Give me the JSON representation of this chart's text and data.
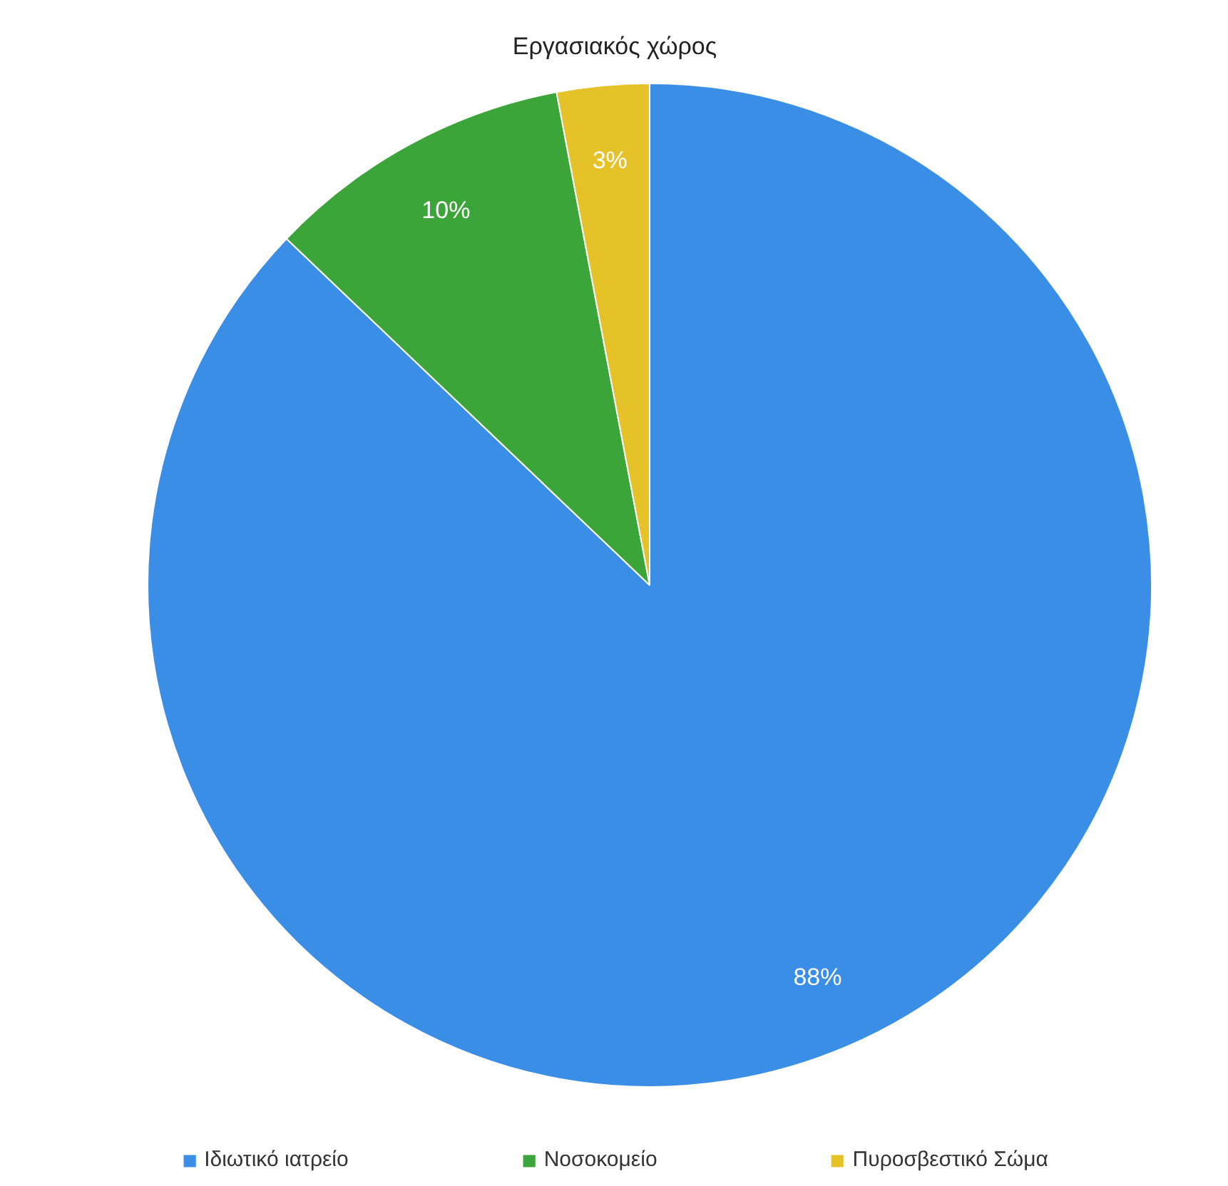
{
  "chart_data": {
    "type": "pie",
    "title": "Εργασιακός χώρος",
    "categories": [
      "Ιδιωτικό ιατρείο",
      "Νοσοκομείο",
      "Πυροσβεστικό Σώμα"
    ],
    "values": [
      88,
      10,
      3
    ],
    "value_labels": [
      "88%",
      "10%",
      "3%"
    ],
    "colors": [
      "#3a8ee6",
      "#3ca53a",
      "#e6c229"
    ],
    "legend": "bottom"
  }
}
